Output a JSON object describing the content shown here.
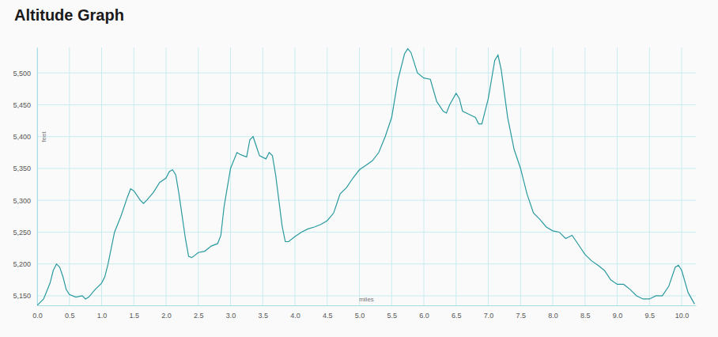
{
  "chart_data": {
    "type": "line",
    "title": "Altitude Graph",
    "x_label": "miles",
    "y_label": "feet",
    "color": "#2a9a9e",
    "grid": true,
    "xlim": [
      0,
      10.22
    ],
    "ylim": [
      5135,
      5540
    ],
    "xticks": [
      {
        "value": 0,
        "label": "0.0"
      },
      0.5,
      {
        "value": 1,
        "label": "1.0"
      },
      1.5,
      {
        "value": 2,
        "label": "2.0"
      },
      2.5,
      {
        "value": 3,
        "label": "3.0"
      },
      3.5,
      {
        "value": 4,
        "label": "4.0"
      },
      4.5,
      {
        "value": 5,
        "label": "5.0"
      },
      5.5,
      {
        "value": 6,
        "label": "6.0"
      },
      6.5,
      {
        "value": 7,
        "label": "7.0"
      },
      7.5,
      {
        "value": 8,
        "label": "8.0"
      },
      8.5,
      {
        "value": 9,
        "label": "9.0"
      },
      9.5,
      {
        "value": 10,
        "label": "10.0"
      }
    ],
    "yticks": [
      {
        "value": 5150,
        "label": "5,150"
      },
      {
        "value": 5200,
        "label": "5,200"
      },
      {
        "value": 5250,
        "label": "5,250"
      },
      {
        "value": 5300,
        "label": "5,300"
      },
      {
        "value": 5350,
        "label": "5,350"
      },
      {
        "value": 5400,
        "label": "5,400"
      },
      {
        "value": 5450,
        "label": "5,450"
      },
      {
        "value": 5500,
        "label": "5,500"
      }
    ],
    "x": [
      0,
      0.1,
      0.2,
      0.25,
      0.3,
      0.35,
      0.4,
      0.45,
      0.5,
      0.6,
      0.7,
      0.75,
      0.8,
      0.9,
      1.0,
      1.05,
      1.1,
      1.2,
      1.3,
      1.4,
      1.45,
      1.5,
      1.6,
      1.65,
      1.7,
      1.8,
      1.9,
      2.0,
      2.05,
      2.1,
      2.15,
      2.2,
      2.3,
      2.35,
      2.4,
      2.5,
      2.6,
      2.7,
      2.8,
      2.85,
      2.9,
      3.0,
      3.1,
      3.15,
      3.2,
      3.25,
      3.3,
      3.35,
      3.4,
      3.45,
      3.55,
      3.6,
      3.65,
      3.7,
      3.8,
      3.85,
      3.9,
      4.0,
      4.1,
      4.2,
      4.3,
      4.4,
      4.5,
      4.6,
      4.7,
      4.8,
      4.9,
      5.0,
      5.1,
      5.2,
      5.3,
      5.4,
      5.5,
      5.6,
      5.7,
      5.75,
      5.8,
      5.9,
      6.0,
      6.1,
      6.2,
      6.3,
      6.35,
      6.4,
      6.5,
      6.55,
      6.6,
      6.7,
      6.8,
      6.85,
      6.9,
      7.0,
      7.1,
      7.15,
      7.2,
      7.3,
      7.4,
      7.5,
      7.6,
      7.7,
      7.8,
      7.9,
      8.0,
      8.1,
      8.2,
      8.3,
      8.4,
      8.5,
      8.6,
      8.7,
      8.8,
      8.9,
      9.0,
      9.1,
      9.2,
      9.3,
      9.4,
      9.5,
      9.6,
      9.7,
      9.8,
      9.9,
      9.95,
      10.0,
      10.1,
      10.2
    ],
    "values": [
      5135,
      5145,
      5170,
      5190,
      5200,
      5195,
      5180,
      5160,
      5152,
      5148,
      5150,
      5145,
      5148,
      5160,
      5170,
      5180,
      5200,
      5250,
      5275,
      5305,
      5318,
      5315,
      5300,
      5295,
      5300,
      5312,
      5328,
      5335,
      5345,
      5348,
      5340,
      5310,
      5240,
      5212,
      5210,
      5218,
      5220,
      5228,
      5232,
      5245,
      5290,
      5350,
      5375,
      5372,
      5370,
      5368,
      5395,
      5400,
      5385,
      5370,
      5365,
      5375,
      5370,
      5340,
      5260,
      5235,
      5235,
      5243,
      5250,
      5255,
      5258,
      5262,
      5268,
      5280,
      5310,
      5320,
      5335,
      5348,
      5355,
      5362,
      5375,
      5400,
      5430,
      5490,
      5530,
      5538,
      5532,
      5500,
      5492,
      5490,
      5455,
      5440,
      5437,
      5450,
      5468,
      5460,
      5440,
      5435,
      5430,
      5420,
      5420,
      5460,
      5520,
      5528,
      5505,
      5430,
      5380,
      5350,
      5310,
      5280,
      5270,
      5258,
      5252,
      5250,
      5240,
      5245,
      5230,
      5215,
      5205,
      5198,
      5190,
      5175,
      5168,
      5168,
      5160,
      5150,
      5145,
      5145,
      5150,
      5150,
      5165,
      5195,
      5198,
      5190,
      5155,
      5137
    ]
  }
}
